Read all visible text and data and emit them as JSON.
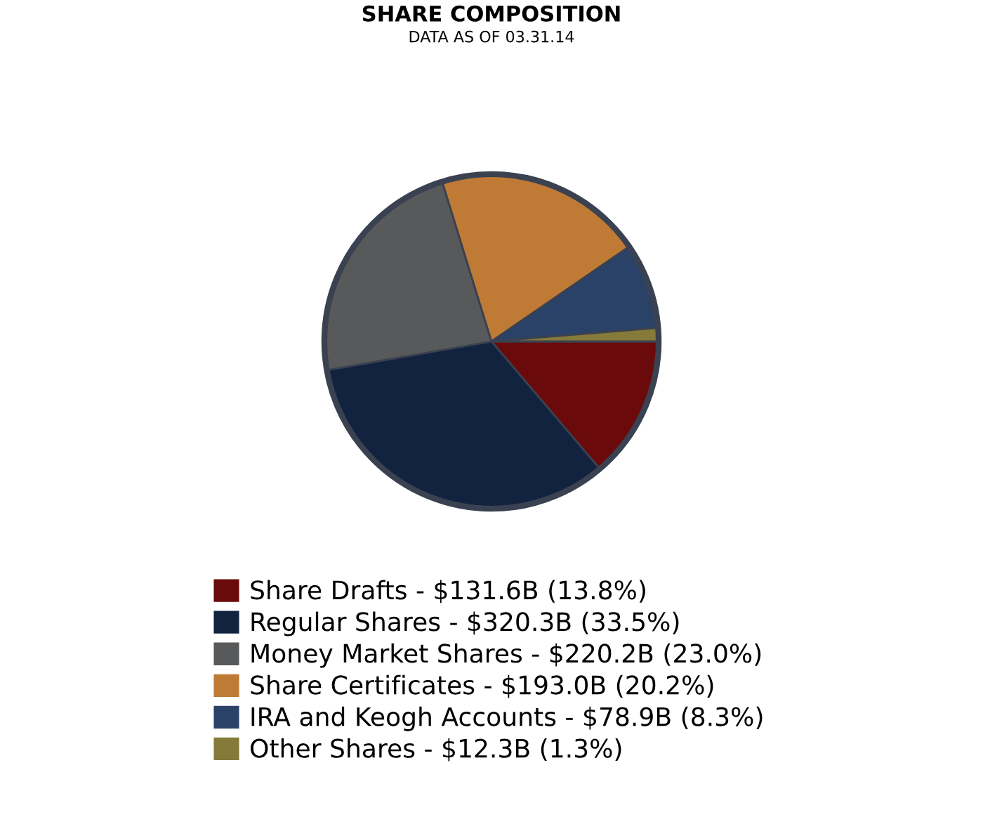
{
  "chart_data": {
    "type": "pie",
    "title": "SHARE COMPOSITION",
    "subtitle": "DATA AS OF 03.31.14",
    "categories": [
      "Share Drafts - $131.6B (13.8%)",
      "Regular Shares - $320.3B (33.5%)",
      "Money Market Shares - $220.2B (23.0%)",
      "Share Certificates - $193.0B (20.2%)",
      "IRA and Keogh Accounts - $78.9B (8.3%)",
      "Other Shares - $12.3B (1.3%)"
    ],
    "values": [
      13.8,
      33.5,
      23.0,
      20.2,
      8.3,
      1.3
    ],
    "colors": [
      "#6b0a0a",
      "#12233f",
      "#58595b",
      "#bf7a35",
      "#2b4268",
      "#857a3a"
    ],
    "legend": "bottom"
  }
}
